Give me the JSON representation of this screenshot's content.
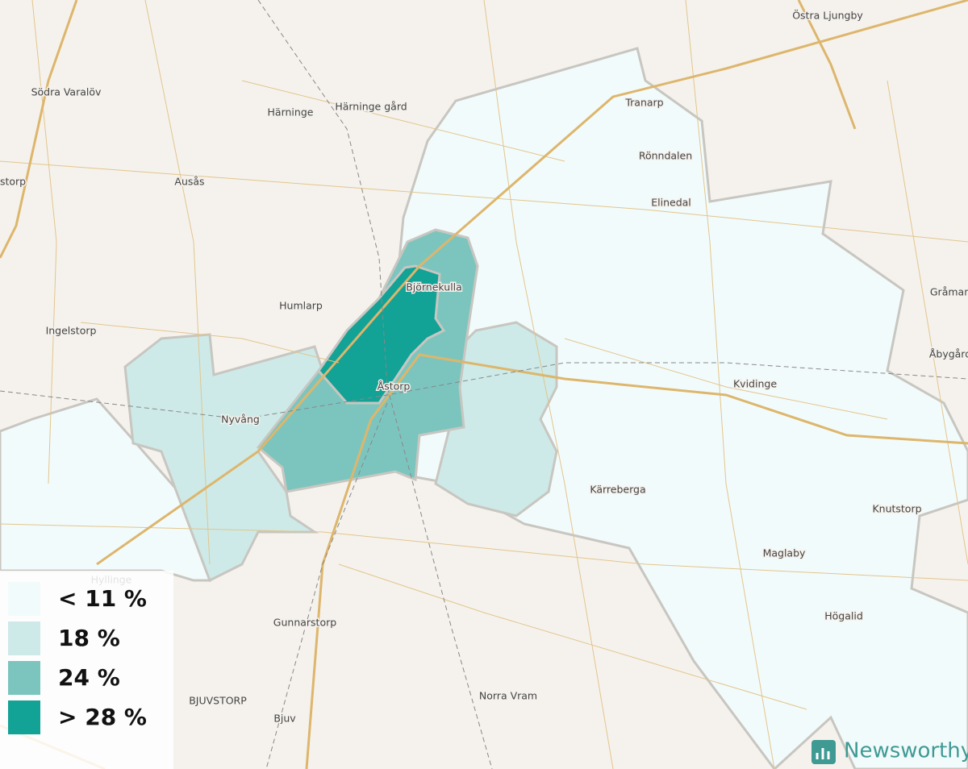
{
  "places": [
    {
      "name": "Östra Ljungby"
    },
    {
      "name": "Södra Varalöv"
    },
    {
      "name": "Härninge"
    },
    {
      "name": "Härninge gård"
    },
    {
      "name": "Tranarp"
    },
    {
      "name": "Rönndalen"
    },
    {
      "name": "storp"
    },
    {
      "name": "Ausås"
    },
    {
      "name": "Elinedal"
    },
    {
      "name": "Björnekulla"
    },
    {
      "name": "Humlarp"
    },
    {
      "name": "Gråman"
    },
    {
      "name": "Ingelstorp"
    },
    {
      "name": "Åbygård"
    },
    {
      "name": "Åstorp"
    },
    {
      "name": "Kvidinge"
    },
    {
      "name": "Nyvång"
    },
    {
      "name": "Kärreberga"
    },
    {
      "name": "Knutstorp"
    },
    {
      "name": "Maglaby"
    },
    {
      "name": "Hyllinge"
    },
    {
      "name": "Högalid"
    },
    {
      "name": "Gunnarstorp"
    },
    {
      "name": "Norra Vram"
    },
    {
      "name": "BJUVSTORP"
    },
    {
      "name": "Bjuv"
    }
  ],
  "legend": {
    "items": [
      {
        "label": "< 11 %",
        "color": "#f2fbfb"
      },
      {
        "label": "18 %",
        "color": "#cdeae8"
      },
      {
        "label": "24 %",
        "color": "#7cc5bf"
      },
      {
        "label": "> 28 %",
        "color": "#12a296"
      }
    ]
  },
  "brand": "Newsworthy"
}
